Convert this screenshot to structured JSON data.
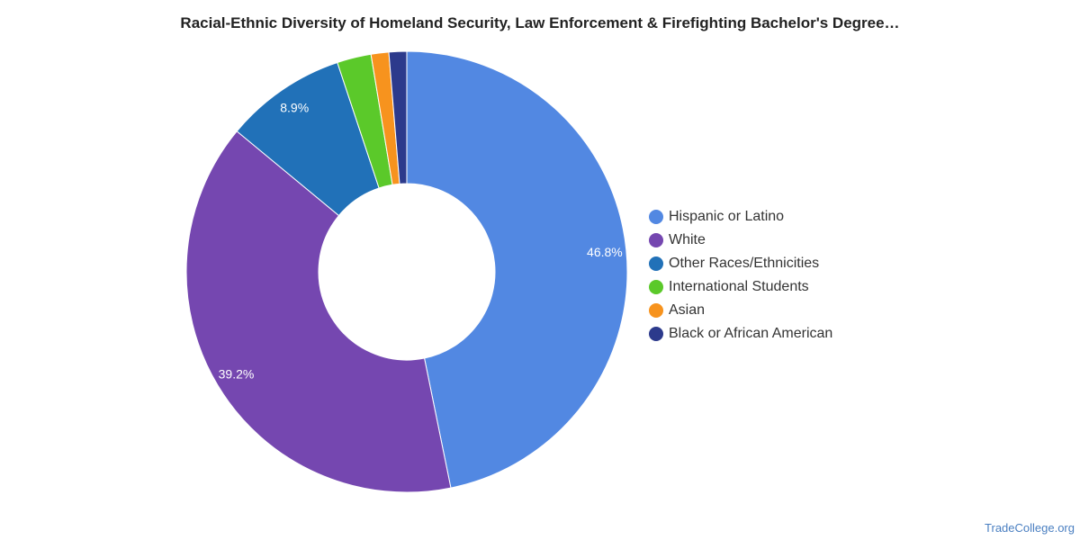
{
  "chart_data": {
    "type": "pie",
    "title": "Racial-Ethnic Diversity of Homeland Security, Law Enforcement & Firefighting Bachelor's Degree…",
    "categories": [
      "Hispanic or Latino",
      "White",
      "Other Races/Ethnicities",
      "International Students",
      "Asian",
      "Black or African American"
    ],
    "values": [
      46.8,
      39.2,
      8.9,
      2.5,
      1.3,
      1.3
    ],
    "labels": [
      "46.8%",
      "39.2%",
      "8.9%",
      "",
      "",
      ""
    ],
    "colors": [
      "#5288e2",
      "#7547b0",
      "#2171b8",
      "#5bc92a",
      "#f7931e",
      "#2c3a8c"
    ],
    "legend_position": "right",
    "donut": true
  },
  "watermark": "TradeCollege.org"
}
